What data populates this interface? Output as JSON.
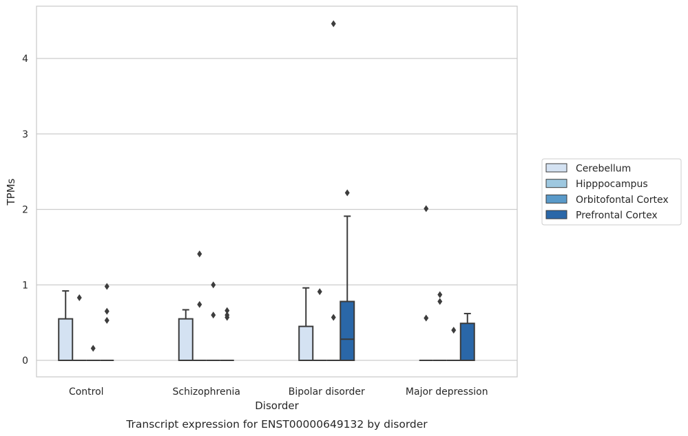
{
  "caption": "Transcript expression for ENST00000649132 by disorder",
  "colors": {
    "Cerebellum": "#d4e2f2",
    "Hipppocampus": "#9ec8e0",
    "Orbitofontal Cortex": "#5a9ac9",
    "Prefrontal Cortex": "#2a67a8",
    "grid": "#cccccc",
    "frame": "#c8c8c8",
    "line": "#3a3a3a"
  },
  "chart_data": {
    "type": "box",
    "xlabel": "Disorder",
    "ylabel": "TPMs",
    "ylim": [
      -0.22,
      4.7
    ],
    "yticks": [
      0,
      1,
      2,
      3,
      4
    ],
    "grid": "horizontal",
    "legend_position": "right",
    "categories": [
      "Control",
      "Schizophrenia",
      "Bipolar disorder",
      "Major depression"
    ],
    "series": [
      {
        "name": "Cerebellum",
        "boxes": [
          {
            "q1": 0,
            "median": 0,
            "q3": 0.55,
            "whisker_low": 0,
            "whisker_high": 0.92,
            "outliers": []
          },
          {
            "q1": 0,
            "median": 0,
            "q3": 0.55,
            "whisker_low": 0,
            "whisker_high": 0.67,
            "outliers": []
          },
          {
            "q1": 0,
            "median": 0,
            "q3": 0.45,
            "whisker_low": 0,
            "whisker_high": 0.96,
            "outliers": []
          },
          {
            "q1": 0,
            "median": 0,
            "q3": 0,
            "whisker_low": 0,
            "whisker_high": 0,
            "outliers": [
              0.56,
              2.01
            ]
          }
        ]
      },
      {
        "name": "Hipppocampus",
        "boxes": [
          {
            "q1": 0,
            "median": 0,
            "q3": 0,
            "whisker_low": 0,
            "whisker_high": 0,
            "outliers": [
              0.83
            ]
          },
          {
            "q1": 0,
            "median": 0,
            "q3": 0,
            "whisker_low": 0,
            "whisker_high": 0,
            "outliers": [
              0.74,
              1.41
            ]
          },
          {
            "q1": 0,
            "median": 0,
            "q3": 0,
            "whisker_low": 0,
            "whisker_high": 0,
            "outliers": [
              0.91
            ]
          },
          {
            "q1": 0,
            "median": 0,
            "q3": 0,
            "whisker_low": 0,
            "whisker_high": 0,
            "outliers": [
              0.78,
              0.87
            ]
          }
        ]
      },
      {
        "name": "Orbitofontal Cortex",
        "boxes": [
          {
            "q1": 0,
            "median": 0,
            "q3": 0,
            "whisker_low": 0,
            "whisker_high": 0,
            "outliers": [
              0.16
            ]
          },
          {
            "q1": 0,
            "median": 0,
            "q3": 0,
            "whisker_low": 0,
            "whisker_high": 0,
            "outliers": [
              0.6,
              1.0
            ]
          },
          {
            "q1": 0,
            "median": 0,
            "q3": 0,
            "whisker_low": 0,
            "whisker_high": 0,
            "outliers": [
              0.57,
              4.46
            ]
          },
          {
            "q1": 0,
            "median": 0,
            "q3": 0,
            "whisker_low": 0,
            "whisker_high": 0,
            "outliers": [
              0.4
            ]
          }
        ]
      },
      {
        "name": "Prefrontal Cortex",
        "boxes": [
          {
            "q1": 0,
            "median": 0,
            "q3": 0,
            "whisker_low": 0,
            "whisker_high": 0,
            "outliers": [
              0.53,
              0.65,
              0.98
            ]
          },
          {
            "q1": 0,
            "median": 0,
            "q3": 0,
            "whisker_low": 0,
            "whisker_high": 0,
            "outliers": [
              0.57,
              0.6,
              0.66
            ]
          },
          {
            "q1": 0,
            "median": 0.28,
            "q3": 0.78,
            "whisker_low": 0,
            "whisker_high": 1.91,
            "outliers": [
              2.22
            ]
          },
          {
            "q1": 0,
            "median": 0,
            "q3": 0.49,
            "whisker_low": 0,
            "whisker_high": 0.62,
            "outliers": []
          }
        ]
      }
    ]
  }
}
